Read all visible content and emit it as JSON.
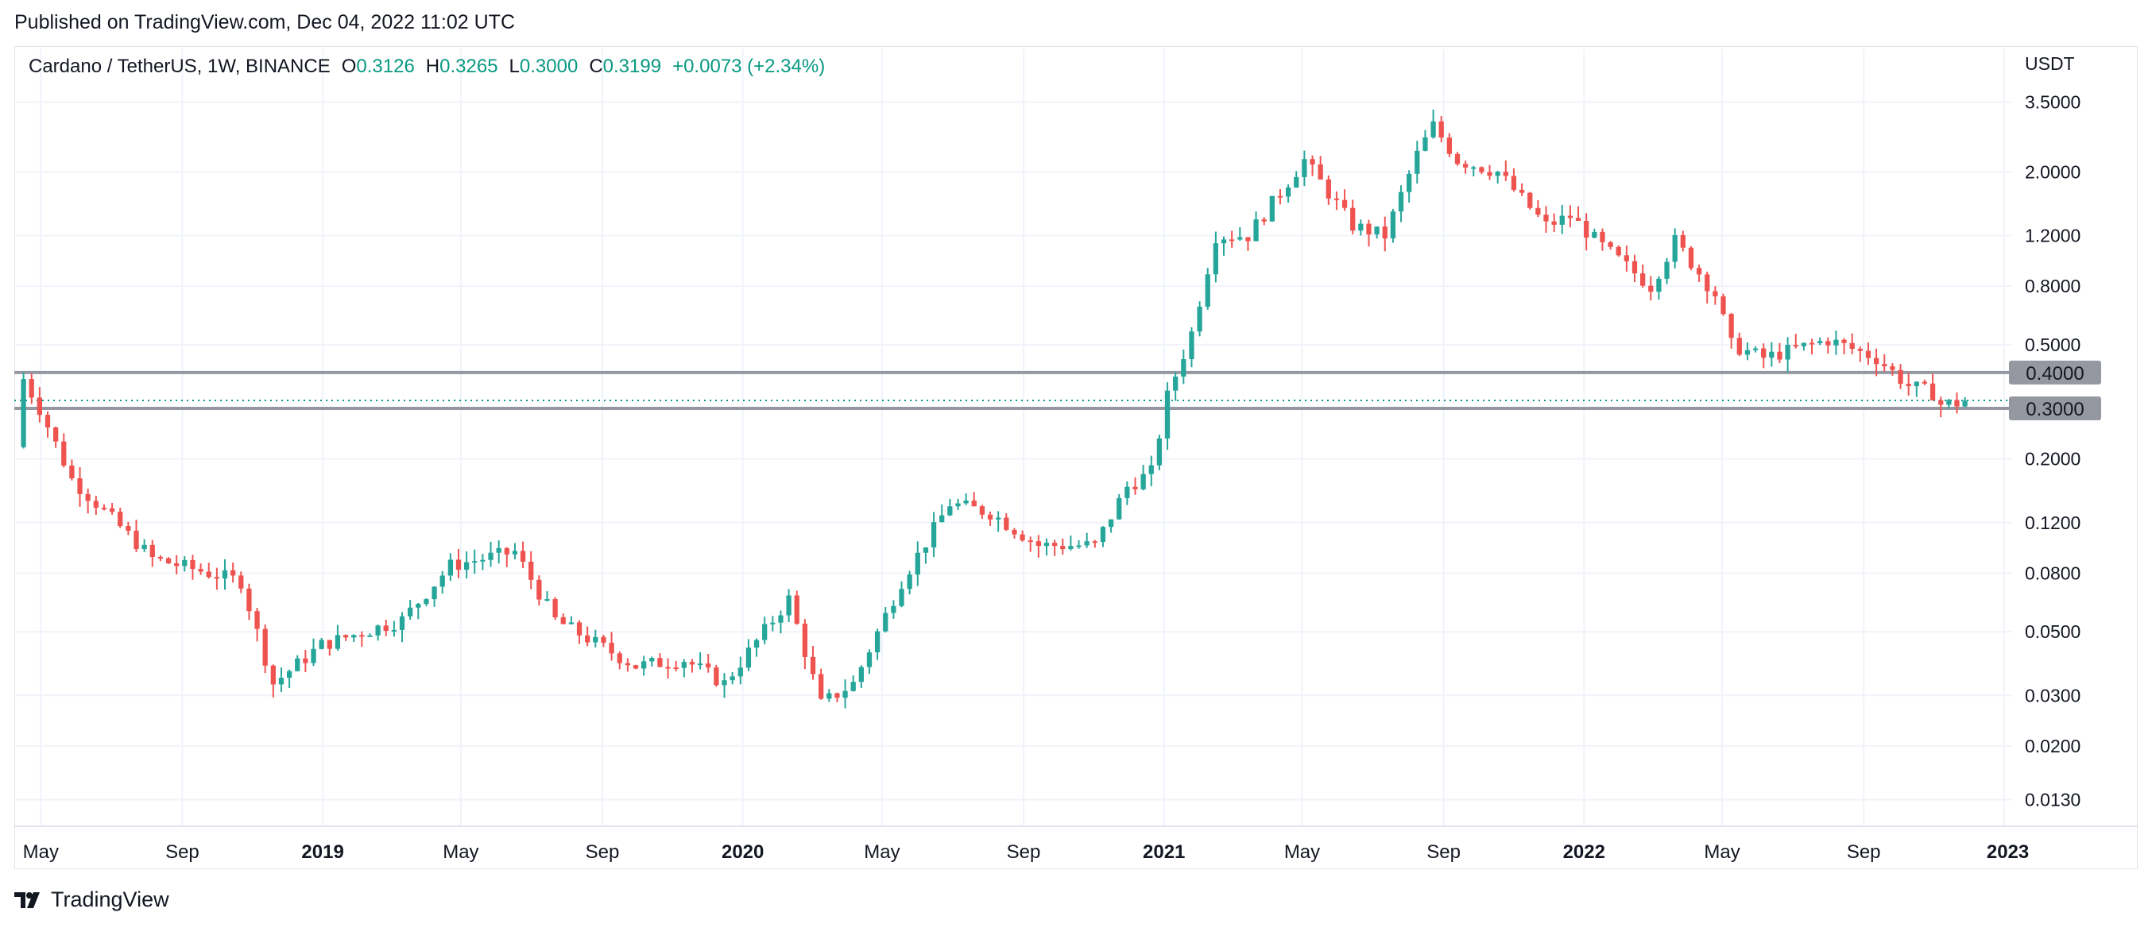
{
  "published": "Published on TradingView.com, Dec 04, 2022 11:02 UTC",
  "legend": {
    "symbol": "Cardano / TetherUS, 1W, BINANCE",
    "o_label": "O",
    "o": "0.3126",
    "h_label": "H",
    "h": "0.3265",
    "l_label": "L",
    "l": "0.3000",
    "c_label": "C",
    "c": "0.3199",
    "change": "+0.0073 (+2.34%)"
  },
  "brand": "TradingView",
  "colors": {
    "up": "#26a69a",
    "down": "#ef5350",
    "level": "#9598a1",
    "grid": "#f0f3fa",
    "text": "#131722",
    "last_price": "#089981"
  },
  "chart_data": {
    "type": "candlestick",
    "title": "Cardano / TetherUS, 1W, BINANCE",
    "currency": "USDT",
    "y_scale": "log",
    "ylim": [
      0.0105,
      4.2
    ],
    "xlim": [
      "2018-04-08",
      "2023-01-08"
    ],
    "grid": true,
    "y_ticks": [
      "3.5000",
      "2.0000",
      "1.2000",
      "0.8000",
      "0.5000",
      "0.2000",
      "0.1200",
      "0.0800",
      "0.0500",
      "0.0300",
      "0.0200",
      "0.0130"
    ],
    "x_ticks": [
      {
        "date": "2018-05-01",
        "label": "May",
        "bold": false
      },
      {
        "date": "2018-09-01",
        "label": "Sep",
        "bold": false
      },
      {
        "date": "2019-01-01",
        "label": "2019",
        "bold": true
      },
      {
        "date": "2019-05-01",
        "label": "May",
        "bold": false
      },
      {
        "date": "2019-09-01",
        "label": "Sep",
        "bold": false
      },
      {
        "date": "2020-01-01",
        "label": "2020",
        "bold": true
      },
      {
        "date": "2020-05-01",
        "label": "May",
        "bold": false
      },
      {
        "date": "2020-09-01",
        "label": "Sep",
        "bold": false
      },
      {
        "date": "2021-01-01",
        "label": "2021",
        "bold": true
      },
      {
        "date": "2021-05-01",
        "label": "May",
        "bold": false
      },
      {
        "date": "2021-09-01",
        "label": "Sep",
        "bold": false
      },
      {
        "date": "2022-01-01",
        "label": "2022",
        "bold": true
      },
      {
        "date": "2022-05-01",
        "label": "May",
        "bold": false
      },
      {
        "date": "2022-09-01",
        "label": "Sep",
        "bold": false
      },
      {
        "date": "2023-01-01",
        "label": "2023",
        "bold": true
      }
    ],
    "horizontal_levels": [
      {
        "value": 0.4,
        "label": "0.4000"
      },
      {
        "value": 0.3,
        "label": "0.3000"
      }
    ],
    "last_price": 0.3199,
    "key_prices": [
      {
        "date": "2018-04-16",
        "price": 0.22
      },
      {
        "date": "2018-04-23",
        "price": 0.38
      },
      {
        "date": "2018-05-07",
        "price": 0.3
      },
      {
        "date": "2018-06-04",
        "price": 0.17
      },
      {
        "date": "2018-08-13",
        "price": 0.09
      },
      {
        "date": "2018-10-29",
        "price": 0.075
      },
      {
        "date": "2018-11-26",
        "price": 0.033
      },
      {
        "date": "2019-01-07",
        "price": 0.045
      },
      {
        "date": "2019-03-18",
        "price": 0.055
      },
      {
        "date": "2019-04-29",
        "price": 0.085
      },
      {
        "date": "2019-06-24",
        "price": 0.095
      },
      {
        "date": "2019-07-29",
        "price": 0.055
      },
      {
        "date": "2019-10-07",
        "price": 0.038
      },
      {
        "date": "2019-11-18",
        "price": 0.04
      },
      {
        "date": "2019-12-23",
        "price": 0.033
      },
      {
        "date": "2020-02-17",
        "price": 0.065
      },
      {
        "date": "2020-03-16",
        "price": 0.028
      },
      {
        "date": "2020-04-13",
        "price": 0.033
      },
      {
        "date": "2020-05-25",
        "price": 0.075
      },
      {
        "date": "2020-07-06",
        "price": 0.14
      },
      {
        "date": "2020-08-10",
        "price": 0.13
      },
      {
        "date": "2020-09-21",
        "price": 0.1
      },
      {
        "date": "2020-11-09",
        "price": 0.1
      },
      {
        "date": "2020-12-07",
        "price": 0.16
      },
      {
        "date": "2020-12-28",
        "price": 0.18
      },
      {
        "date": "2021-01-11",
        "price": 0.33
      },
      {
        "date": "2021-02-01",
        "price": 0.55
      },
      {
        "date": "2021-02-22",
        "price": 1.2
      },
      {
        "date": "2021-03-22",
        "price": 1.2
      },
      {
        "date": "2021-05-10",
        "price": 2.2
      },
      {
        "date": "2021-06-21",
        "price": 1.3
      },
      {
        "date": "2021-07-19",
        "price": 1.2
      },
      {
        "date": "2021-08-16",
        "price": 2.3
      },
      {
        "date": "2021-08-30",
        "price": 2.9
      },
      {
        "date": "2021-09-20",
        "price": 2.2
      },
      {
        "date": "2021-10-25",
        "price": 2.0
      },
      {
        "date": "2021-12-06",
        "price": 1.3
      },
      {
        "date": "2021-12-27",
        "price": 1.4
      },
      {
        "date": "2022-01-24",
        "price": 1.1
      },
      {
        "date": "2022-03-07",
        "price": 0.8
      },
      {
        "date": "2022-03-28",
        "price": 1.15
      },
      {
        "date": "2022-05-02",
        "price": 0.75
      },
      {
        "date": "2022-05-16",
        "price": 0.5
      },
      {
        "date": "2022-06-13",
        "price": 0.45
      },
      {
        "date": "2022-08-08",
        "price": 0.52
      },
      {
        "date": "2022-09-19",
        "price": 0.45
      },
      {
        "date": "2022-10-17",
        "price": 0.36
      },
      {
        "date": "2022-11-07",
        "price": 0.34
      },
      {
        "date": "2022-11-14",
        "price": 0.31
      },
      {
        "date": "2022-11-28",
        "price": 0.3126
      },
      {
        "date": "2022-12-04",
        "price": 0.3199
      }
    ]
  }
}
